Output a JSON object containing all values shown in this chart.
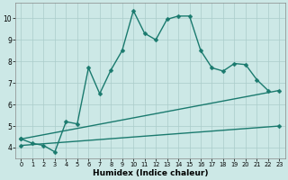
{
  "xlabel": "Humidex (Indice chaleur)",
  "xlim": [
    -0.5,
    23.5
  ],
  "ylim": [
    3.5,
    10.7
  ],
  "yticks": [
    4,
    5,
    6,
    7,
    8,
    9,
    10
  ],
  "xticks": [
    0,
    1,
    2,
    3,
    4,
    5,
    6,
    7,
    8,
    9,
    10,
    11,
    12,
    13,
    14,
    15,
    16,
    17,
    18,
    19,
    20,
    21,
    22,
    23
  ],
  "bg_color": "#cce8e6",
  "grid_color": "#aaccca",
  "line_color": "#1a7a6e",
  "line1_x": [
    0,
    1,
    2,
    3,
    4,
    5,
    6,
    7,
    8,
    9,
    10,
    11,
    12,
    13,
    14,
    15,
    16,
    17,
    18,
    19,
    20,
    21,
    22
  ],
  "line1_y": [
    4.4,
    4.2,
    4.1,
    3.8,
    5.2,
    5.1,
    7.7,
    6.5,
    7.6,
    8.5,
    10.35,
    9.3,
    9.0,
    9.95,
    10.1,
    10.1,
    8.5,
    7.7,
    7.55,
    7.9,
    7.85,
    7.15,
    6.65
  ],
  "line2_x": [
    0,
    23
  ],
  "line2_y": [
    4.4,
    6.65
  ],
  "line3_x": [
    0,
    23
  ],
  "line3_y": [
    4.1,
    5.0
  ],
  "markersize": 2.5,
  "linewidth": 1.0,
  "tick_fontsize": 5.5,
  "xlabel_fontsize": 6.5
}
